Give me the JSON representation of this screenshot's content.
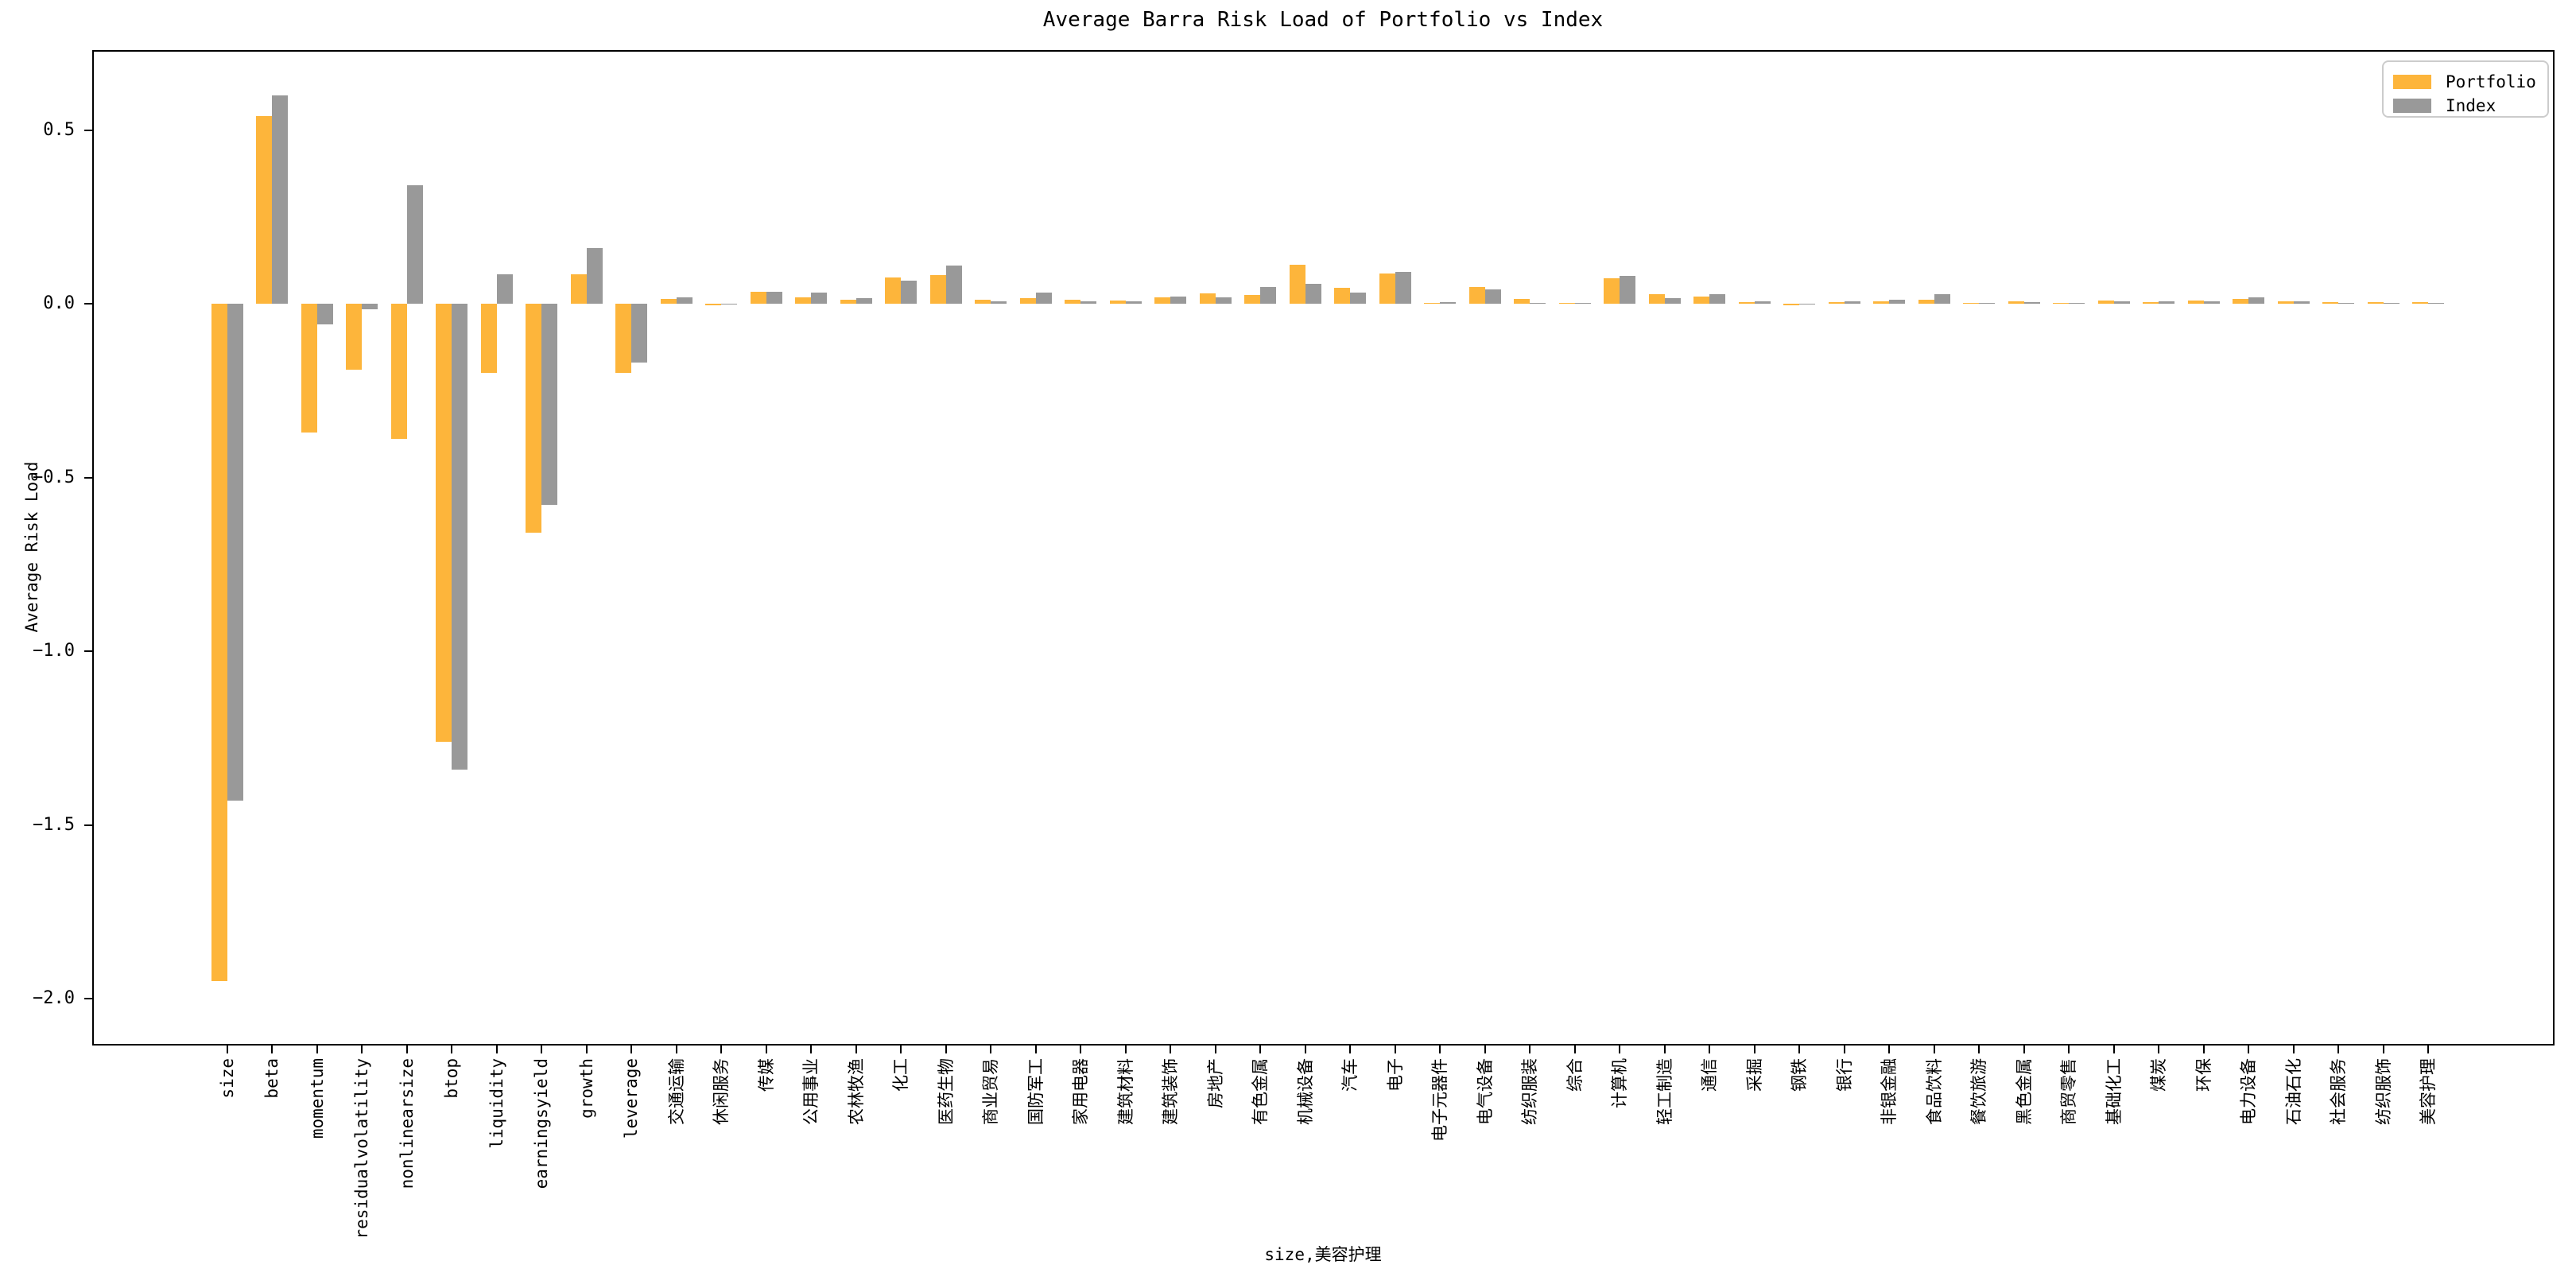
{
  "chart_data": {
    "type": "bar",
    "title": "Average Barra Risk Load of Portfolio vs Index",
    "xlabel": "size,美容护理",
    "ylabel": "Average Risk Load",
    "grid": false,
    "legend_position": "upper right",
    "ylim": [
      -2.13,
      0.73
    ],
    "yticks": [
      0.5,
      0.0,
      -0.5,
      -1.0,
      -1.5,
      -2.0
    ],
    "ytick_labels": [
      "0.5",
      "0.0",
      "−0.5",
      "−1.0",
      "−1.5",
      "−2.0"
    ],
    "categories": [
      "size",
      "beta",
      "momentum",
      "residualvolatility",
      "nonlinearsize",
      "btop",
      "liquidity",
      "earningsyield",
      "growth",
      "leverage",
      "交通运输",
      "休闲服务",
      "传媒",
      "公用事业",
      "农林牧渔",
      "化工",
      "医药生物",
      "商业贸易",
      "国防军工",
      "家用电器",
      "建筑材料",
      "建筑装饰",
      "房地产",
      "有色金属",
      "机械设备",
      "汽车",
      "电子",
      "电子元器件",
      "电气设备",
      "纺织服装",
      "综合",
      "计算机",
      "轻工制造",
      "通信",
      "采掘",
      "钢铁",
      "银行",
      "非银金融",
      "食品饮料",
      "餐饮旅游",
      "黑色金属",
      "商贸零售",
      "基础化工",
      "煤炭",
      "环保",
      "电力设备",
      "石油石化",
      "社会服务",
      "纺织服饰",
      "美容护理"
    ],
    "series": [
      {
        "name": "Portfolio",
        "color": "#FDB53B",
        "values": [
          -1.95,
          0.54,
          -0.37,
          -0.19,
          -0.39,
          -1.26,
          -0.2,
          -0.66,
          0.085,
          -0.2,
          0.014,
          -0.005,
          0.034,
          0.019,
          0.011,
          0.076,
          0.082,
          0.011,
          0.015,
          0.011,
          0.009,
          0.018,
          0.029,
          0.025,
          0.113,
          0.046,
          0.086,
          0.003,
          0.049,
          0.013,
          0.003,
          0.073,
          0.027,
          0.02,
          0.005,
          -0.004,
          0.005,
          0.008,
          0.012,
          0.001,
          0.008,
          0.003,
          0.009,
          0.004,
          0.01,
          0.014,
          0.006,
          0.005,
          0.004,
          0.004
        ]
      },
      {
        "name": "Index",
        "color": "#999999",
        "values": [
          -1.43,
          0.6,
          -0.06,
          -0.015,
          0.34,
          -1.34,
          0.085,
          -0.58,
          0.16,
          -0.17,
          0.019,
          -0.001,
          0.034,
          0.031,
          0.017,
          0.066,
          0.11,
          0.006,
          0.032,
          0.007,
          0.008,
          0.02,
          0.018,
          0.047,
          0.058,
          0.032,
          0.092,
          0.005,
          0.041,
          0.002,
          0.001,
          0.081,
          0.015,
          0.027,
          0.006,
          -0.003,
          0.008,
          0.012,
          0.027,
          0.001,
          0.004,
          0.001,
          0.008,
          0.008,
          0.008,
          0.019,
          0.006,
          0.001,
          0.001,
          0.001
        ]
      }
    ]
  },
  "legend": {
    "portfolio_label": "Portfolio",
    "index_label": "Index"
  },
  "colors": {
    "portfolio": "#FDB53B",
    "index": "#999999",
    "axis": "#000000",
    "legend_border": "#cccccc",
    "background": "#ffffff"
  }
}
